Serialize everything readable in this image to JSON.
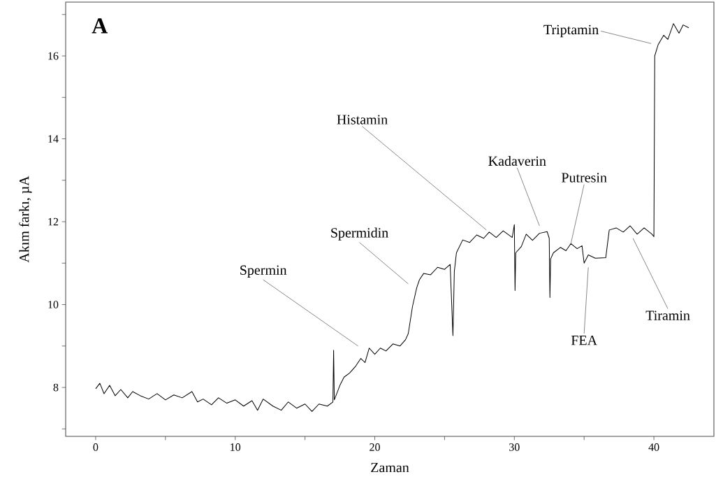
{
  "chart_data": {
    "type": "line",
    "xlabel": "Zaman",
    "ylabel": "Akım farkı, µA",
    "xlim": [
      -2.15,
      44.3
    ],
    "ylim": [
      6.82,
      17.3
    ],
    "xticks": [
      0,
      {
        "value": 5,
        "label": null
      },
      10,
      {
        "value": 15,
        "label": null
      },
      20,
      {
        "value": 25,
        "label": null
      },
      30,
      {
        "value": 35,
        "label": null
      },
      40
    ],
    "yticks": [
      {
        "value": 7,
        "label": null
      },
      8,
      {
        "value": 9,
        "label": null
      },
      10,
      {
        "value": 11,
        "label": null
      },
      12,
      {
        "value": 13,
        "label": null
      },
      14,
      {
        "value": 15,
        "label": null
      },
      16,
      {
        "value": 17,
        "label": null
      }
    ],
    "grid": false,
    "marker": "none",
    "line_style": "solid",
    "series": [
      {
        "color": "#000000",
        "x": [
          0,
          0.3,
          0.6,
          1.0,
          1.4,
          1.8,
          2.3,
          2.65,
          3.2,
          3.8,
          4.4,
          5.0,
          5.6,
          6.2,
          6.9,
          7.3,
          7.7,
          8.3,
          8.8,
          9.4,
          10.0,
          10.6,
          11.2,
          11.6,
          12.0,
          12.7,
          13.3,
          13.8,
          14.4,
          15.0,
          15.5,
          16.0,
          16.6,
          17.0,
          17.05,
          17.1,
          17.5,
          17.8,
          18.2,
          18.6,
          19.0,
          19.3,
          19.6,
          20.0,
          20.4,
          20.8,
          21.3,
          21.8,
          22.2,
          22.4,
          22.7,
          23.0,
          23.2,
          23.5,
          24.0,
          24.5,
          25.0,
          25.4,
          25.6,
          25.7,
          25.85,
          26.3,
          26.8,
          27.3,
          27.8,
          28.2,
          28.7,
          29.2,
          29.85,
          30.0,
          30.05,
          30.1,
          30.5,
          30.85,
          31.3,
          31.8,
          32.35,
          32.5,
          32.55,
          32.6,
          32.8,
          33.3,
          33.7,
          34.05,
          34.5,
          34.85,
          35.0,
          35.3,
          35.8,
          36.55,
          36.8,
          37.3,
          37.8,
          38.3,
          38.8,
          39.3,
          39.86,
          40.0,
          40.06,
          40.3,
          40.7,
          41.0,
          41.4,
          41.8,
          42.1,
          42.5
        ],
        "values": [
          7.97,
          8.1,
          7.85,
          8.05,
          7.8,
          7.95,
          7.75,
          7.9,
          7.8,
          7.72,
          7.85,
          7.7,
          7.82,
          7.75,
          7.9,
          7.65,
          7.72,
          7.58,
          7.75,
          7.62,
          7.7,
          7.55,
          7.68,
          7.45,
          7.72,
          7.55,
          7.45,
          7.65,
          7.5,
          7.6,
          7.42,
          7.6,
          7.55,
          7.65,
          8.9,
          7.7,
          8.05,
          8.25,
          8.35,
          8.5,
          8.7,
          8.6,
          8.95,
          8.8,
          8.95,
          8.88,
          9.05,
          9.0,
          9.15,
          9.3,
          9.95,
          10.4,
          10.6,
          10.75,
          10.72,
          10.9,
          10.85,
          10.97,
          9.25,
          10.8,
          11.25,
          11.56,
          11.5,
          11.68,
          11.6,
          11.75,
          11.62,
          11.78,
          11.62,
          11.93,
          10.34,
          11.25,
          11.4,
          11.7,
          11.55,
          11.72,
          11.76,
          11.6,
          10.17,
          11.1,
          11.25,
          11.38,
          11.3,
          11.47,
          11.35,
          11.42,
          11.0,
          11.2,
          11.12,
          11.13,
          11.8,
          11.85,
          11.75,
          11.9,
          11.7,
          11.85,
          11.7,
          11.64,
          16.0,
          16.27,
          16.5,
          16.4,
          16.78,
          16.55,
          16.75,
          16.68
        ]
      }
    ],
    "annotations": [
      "A",
      "Spermin",
      "Spermidin",
      "Histamin",
      "Kadaverin",
      {
        "text": "Putresin",
        "x": 34.05,
        "y": 11.47
      },
      "FEA",
      "Tiramin",
      "Triptamin"
    ]
  }
}
